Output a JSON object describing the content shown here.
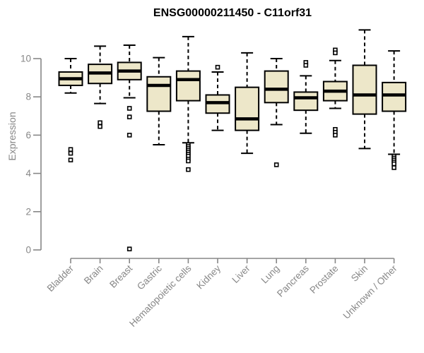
{
  "chart_data": {
    "type": "boxplot",
    "title": "ENSG00000211450 - C11orf31",
    "xlabel": "",
    "ylabel": "Expression",
    "yticks": [
      0,
      2,
      4,
      6,
      8,
      10
    ],
    "ylim": [
      0,
      11.6
    ],
    "grid": false,
    "legend": false,
    "categories": [
      "Bladder",
      "Brain",
      "Breast",
      "Gastric",
      "Hematopoietic cells",
      "Kidney",
      "Liver",
      "Lung",
      "Pancreas",
      "Prostate",
      "Skin",
      "Unknown / Other"
    ],
    "series": [
      {
        "name": "Bladder",
        "whisker_low": 8.2,
        "q1": 8.6,
        "median": 8.95,
        "q3": 9.3,
        "whisker_high": 10.0,
        "outliers": [
          5.25,
          5.05,
          4.7
        ]
      },
      {
        "name": "Brain",
        "whisker_low": 7.65,
        "q1": 8.7,
        "median": 9.25,
        "q3": 9.7,
        "whisker_high": 10.65,
        "outliers": [
          6.65,
          6.45
        ]
      },
      {
        "name": "Breast",
        "whisker_low": 7.95,
        "q1": 8.9,
        "median": 9.35,
        "q3": 9.8,
        "whisker_high": 10.7,
        "outliers": [
          7.4,
          6.95,
          6.0,
          0.05
        ]
      },
      {
        "name": "Gastric",
        "whisker_low": 5.5,
        "q1": 7.25,
        "median": 8.6,
        "q3": 9.05,
        "whisker_high": 10.05,
        "outliers": []
      },
      {
        "name": "Hematopoietic cells",
        "whisker_low": 5.6,
        "q1": 7.8,
        "median": 8.9,
        "q3": 9.35,
        "whisker_high": 11.15,
        "outliers": [
          5.5,
          5.4,
          5.3,
          5.2,
          5.1,
          5.0,
          4.9,
          4.75,
          4.65,
          4.2
        ]
      },
      {
        "name": "Kidney",
        "whisker_low": 6.25,
        "q1": 7.15,
        "median": 7.7,
        "q3": 8.1,
        "whisker_high": 9.3,
        "outliers": [
          9.55
        ]
      },
      {
        "name": "Liver",
        "whisker_low": 5.05,
        "q1": 6.25,
        "median": 6.85,
        "q3": 8.5,
        "whisker_high": 10.3,
        "outliers": []
      },
      {
        "name": "Lung",
        "whisker_low": 6.55,
        "q1": 7.7,
        "median": 8.4,
        "q3": 9.35,
        "whisker_high": 10.0,
        "outliers": [
          4.45
        ]
      },
      {
        "name": "Pancreas",
        "whisker_low": 6.1,
        "q1": 7.3,
        "median": 7.95,
        "q3": 8.25,
        "whisker_high": 9.1,
        "outliers": [
          9.8,
          9.65
        ]
      },
      {
        "name": "Prostate",
        "whisker_low": 7.4,
        "q1": 7.8,
        "median": 8.3,
        "q3": 8.8,
        "whisker_high": 9.9,
        "outliers": [
          10.45,
          10.3,
          6.3,
          6.15,
          6.0
        ]
      },
      {
        "name": "Skin",
        "whisker_low": 5.3,
        "q1": 7.1,
        "median": 8.1,
        "q3": 9.65,
        "whisker_high": 11.5,
        "outliers": []
      },
      {
        "name": "Unknown / Other",
        "whisker_low": 5.0,
        "q1": 7.25,
        "median": 8.1,
        "q3": 8.75,
        "whisker_high": 10.4,
        "outliers": [
          4.9,
          4.8,
          4.7,
          4.6,
          4.5,
          4.3
        ]
      }
    ],
    "colors": {
      "box_fill": "#EDE7C9",
      "box_stroke": "#000000",
      "median": "#000000",
      "whisker": "#000000",
      "outlier_stroke": "#000000",
      "outlier_fill": "#FFFFFF",
      "axis": "#878787",
      "tick_label": "#878787",
      "title": "#000000",
      "background": "#FFFFFF"
    }
  }
}
